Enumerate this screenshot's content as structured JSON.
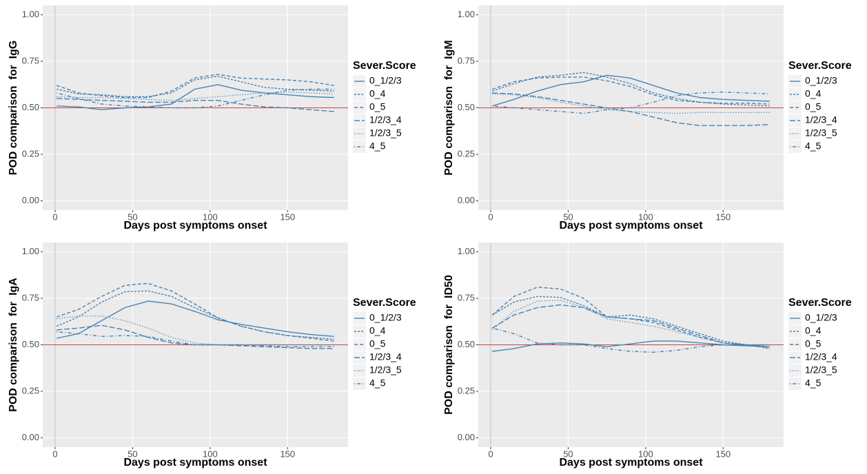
{
  "chart_data": [
    {
      "type": "line",
      "xlabel": "Days post symptoms onset",
      "ylabel": "POD comparison  for  IgG",
      "legend_title": "Sever.Score",
      "legend": "right",
      "grid": true,
      "xlim": [
        -8,
        189
      ],
      "ylim": [
        -0.05,
        1.05
      ],
      "xticks": [
        0,
        50,
        100,
        150
      ],
      "yticks": [
        {
          "value": 0,
          "label": "0.00"
        },
        {
          "value": 0.25,
          "label": "0.25"
        },
        {
          "value": 0.5,
          "label": "0.50"
        },
        {
          "value": 0.75,
          "label": "0.75"
        },
        {
          "value": 1,
          "label": "1.00"
        }
      ],
      "vline": 0,
      "hline": {
        "value": 0.5,
        "color": "#d04040"
      },
      "x": [
        1,
        15,
        30,
        45,
        60,
        75,
        90,
        105,
        120,
        135,
        150,
        165,
        180
      ],
      "series": [
        {
          "name": "0_1/2/3",
          "color": "#4682b4",
          "linetype": "solid",
          "values": [
            0.51,
            0.505,
            0.49,
            0.5,
            0.505,
            0.52,
            0.6,
            0.625,
            0.595,
            0.58,
            0.57,
            0.56,
            0.555
          ]
        },
        {
          "name": "0_4",
          "color": "#4682b4",
          "linetype": "short-dash",
          "values": [
            0.6,
            0.575,
            0.57,
            0.56,
            0.56,
            0.58,
            0.65,
            0.67,
            0.64,
            0.61,
            0.6,
            0.595,
            0.59
          ]
        },
        {
          "name": "0_5",
          "color": "#4682b4",
          "linetype": "dash",
          "values": [
            0.62,
            0.58,
            0.565,
            0.555,
            0.555,
            0.59,
            0.66,
            0.68,
            0.66,
            0.655,
            0.65,
            0.64,
            0.62
          ]
        },
        {
          "name": "1/2/3_4",
          "color": "#4682b4",
          "linetype": "long-dash",
          "values": [
            0.55,
            0.545,
            0.54,
            0.535,
            0.53,
            0.53,
            0.54,
            0.54,
            0.52,
            0.505,
            0.5,
            0.49,
            0.48
          ]
        },
        {
          "name": "1/2/3_5",
          "color": "#4682b4",
          "linetype": "dotted",
          "values": [
            0.56,
            0.555,
            0.555,
            0.55,
            0.545,
            0.54,
            0.55,
            0.56,
            0.57,
            0.58,
            0.585,
            0.58,
            0.575
          ]
        },
        {
          "name": "4_5",
          "color": "#4682b4",
          "linetype": "dot-dash",
          "values": [
            0.58,
            0.55,
            0.52,
            0.51,
            0.505,
            0.5,
            0.5,
            0.51,
            0.54,
            0.57,
            0.595,
            0.6,
            0.6
          ]
        }
      ]
    },
    {
      "type": "line",
      "xlabel": "Days post symptoms onset",
      "ylabel": "POD comparison  for  IgM",
      "legend_title": "Sever.Score",
      "legend": "right",
      "grid": true,
      "xlim": [
        -8,
        189
      ],
      "ylim": [
        -0.05,
        1.05
      ],
      "xticks": [
        0,
        50,
        100,
        150
      ],
      "yticks": [
        {
          "value": 0,
          "label": "0.00"
        },
        {
          "value": 0.25,
          "label": "0.25"
        },
        {
          "value": 0.5,
          "label": "0.50"
        },
        {
          "value": 0.75,
          "label": "0.75"
        },
        {
          "value": 1,
          "label": "1.00"
        }
      ],
      "vline": 0,
      "hline": {
        "value": 0.5,
        "color": "#d04040"
      },
      "x": [
        1,
        15,
        30,
        45,
        60,
        75,
        90,
        105,
        120,
        135,
        150,
        165,
        180
      ],
      "series": [
        {
          "name": "0_1/2/3",
          "color": "#4682b4",
          "linetype": "solid",
          "values": [
            0.51,
            0.545,
            0.59,
            0.625,
            0.64,
            0.675,
            0.66,
            0.62,
            0.58,
            0.555,
            0.545,
            0.54,
            0.535
          ]
        },
        {
          "name": "0_4",
          "color": "#4682b4",
          "linetype": "short-dash",
          "values": [
            0.59,
            0.63,
            0.665,
            0.675,
            0.69,
            0.665,
            0.63,
            0.58,
            0.55,
            0.53,
            0.52,
            0.515,
            0.51
          ]
        },
        {
          "name": "0_5",
          "color": "#4682b4",
          "linetype": "dash",
          "values": [
            0.6,
            0.64,
            0.66,
            0.665,
            0.665,
            0.645,
            0.615,
            0.57,
            0.54,
            0.53,
            0.525,
            0.525,
            0.52
          ]
        },
        {
          "name": "1/2/3_4",
          "color": "#4682b4",
          "linetype": "long-dash",
          "values": [
            0.58,
            0.575,
            0.56,
            0.54,
            0.52,
            0.5,
            0.48,
            0.45,
            0.42,
            0.405,
            0.405,
            0.405,
            0.41
          ]
        },
        {
          "name": "1/2/3_5",
          "color": "#4682b4",
          "linetype": "dotted",
          "values": [
            0.575,
            0.57,
            0.555,
            0.53,
            0.51,
            0.49,
            0.48,
            0.475,
            0.47,
            0.475,
            0.475,
            0.475,
            0.475
          ]
        },
        {
          "name": "4_5",
          "color": "#4682b4",
          "linetype": "dot-dash",
          "values": [
            0.51,
            0.5,
            0.49,
            0.48,
            0.47,
            0.49,
            0.5,
            0.53,
            0.565,
            0.58,
            0.585,
            0.58,
            0.575
          ]
        }
      ]
    },
    {
      "type": "line",
      "xlabel": "Days post symptoms onset",
      "ylabel": "POD comparison  for  IgA",
      "legend_title": "Sever.Score",
      "legend": "right",
      "grid": true,
      "xlim": [
        -8,
        189
      ],
      "ylim": [
        -0.05,
        1.05
      ],
      "xticks": [
        0,
        50,
        100,
        150
      ],
      "yticks": [
        {
          "value": 0,
          "label": "0.00"
        },
        {
          "value": 0.25,
          "label": "0.25"
        },
        {
          "value": 0.5,
          "label": "0.50"
        },
        {
          "value": 0.75,
          "label": "0.75"
        },
        {
          "value": 1,
          "label": "1.00"
        }
      ],
      "vline": 0,
      "hline": {
        "value": 0.5,
        "color": "#d04040"
      },
      "x": [
        1,
        15,
        30,
        45,
        60,
        75,
        90,
        105,
        120,
        135,
        150,
        165,
        180
      ],
      "series": [
        {
          "name": "0_1/2/3",
          "color": "#4682b4",
          "linetype": "solid",
          "values": [
            0.535,
            0.56,
            0.63,
            0.7,
            0.735,
            0.72,
            0.68,
            0.635,
            0.61,
            0.59,
            0.57,
            0.555,
            0.545
          ]
        },
        {
          "name": "0_4",
          "color": "#4682b4",
          "linetype": "short-dash",
          "values": [
            0.6,
            0.65,
            0.73,
            0.785,
            0.79,
            0.76,
            0.7,
            0.645,
            0.6,
            0.57,
            0.55,
            0.54,
            0.53
          ]
        },
        {
          "name": "0_5",
          "color": "#4682b4",
          "linetype": "dash",
          "values": [
            0.65,
            0.69,
            0.76,
            0.82,
            0.83,
            0.79,
            0.72,
            0.645,
            0.6,
            0.57,
            0.55,
            0.535,
            0.52
          ]
        },
        {
          "name": "1/2/3_4",
          "color": "#4682b4",
          "linetype": "long-dash",
          "values": [
            0.58,
            0.59,
            0.605,
            0.58,
            0.54,
            0.51,
            0.5,
            0.5,
            0.495,
            0.49,
            0.485,
            0.48,
            0.48
          ]
        },
        {
          "name": "1/2/3_5",
          "color": "#4682b4",
          "linetype": "dotted",
          "values": [
            0.64,
            0.655,
            0.655,
            0.63,
            0.59,
            0.54,
            0.51,
            0.5,
            0.5,
            0.5,
            0.5,
            0.5,
            0.5
          ]
        },
        {
          "name": "4_5",
          "color": "#4682b4",
          "linetype": "dot-dash",
          "values": [
            0.57,
            0.56,
            0.545,
            0.55,
            0.545,
            0.52,
            0.5,
            0.5,
            0.5,
            0.495,
            0.49,
            0.49,
            0.49
          ]
        }
      ]
    },
    {
      "type": "line",
      "xlabel": "Days post symptoms onset",
      "ylabel": "POD comparison  for  ID50",
      "legend_title": "Sever.Score",
      "legend": "right",
      "grid": true,
      "xlim": [
        -8,
        189
      ],
      "ylim": [
        -0.05,
        1.05
      ],
      "xticks": [
        0,
        50,
        100,
        150
      ],
      "yticks": [
        {
          "value": 0,
          "label": "0.00"
        },
        {
          "value": 0.25,
          "label": "0.25"
        },
        {
          "value": 0.5,
          "label": "0.50"
        },
        {
          "value": 0.75,
          "label": "0.75"
        },
        {
          "value": 1,
          "label": "1.00"
        }
      ],
      "vline": 0,
      "hline": {
        "value": 0.5,
        "color": "#d04040"
      },
      "x": [
        1,
        15,
        30,
        45,
        60,
        75,
        90,
        105,
        120,
        135,
        150,
        165,
        180
      ],
      "series": [
        {
          "name": "0_1/2/3",
          "color": "#4682b4",
          "linetype": "solid",
          "values": [
            0.465,
            0.48,
            0.505,
            0.51,
            0.505,
            0.49,
            0.505,
            0.52,
            0.52,
            0.51,
            0.5,
            0.495,
            0.49
          ]
        },
        {
          "name": "0_4",
          "color": "#4682b4",
          "linetype": "short-dash",
          "values": [
            0.66,
            0.73,
            0.76,
            0.755,
            0.71,
            0.65,
            0.66,
            0.64,
            0.6,
            0.56,
            0.52,
            0.5,
            0.48
          ]
        },
        {
          "name": "0_5",
          "color": "#4682b4",
          "linetype": "dash",
          "values": [
            0.66,
            0.76,
            0.81,
            0.8,
            0.75,
            0.65,
            0.64,
            0.62,
            0.58,
            0.54,
            0.51,
            0.5,
            0.49
          ]
        },
        {
          "name": "1/2/3_4",
          "color": "#4682b4",
          "linetype": "long-dash",
          "values": [
            0.59,
            0.66,
            0.7,
            0.715,
            0.7,
            0.65,
            0.64,
            0.63,
            0.59,
            0.55,
            0.51,
            0.5,
            0.49
          ]
        },
        {
          "name": "1/2/3_5",
          "color": "#4682b4",
          "linetype": "dotted",
          "values": [
            0.58,
            0.68,
            0.735,
            0.74,
            0.7,
            0.64,
            0.62,
            0.6,
            0.57,
            0.54,
            0.51,
            0.5,
            0.48
          ]
        },
        {
          "name": "4_5",
          "color": "#4682b4",
          "linetype": "dot-dash",
          "values": [
            0.59,
            0.56,
            0.51,
            0.5,
            0.5,
            0.48,
            0.465,
            0.46,
            0.47,
            0.49,
            0.5,
            0.5,
            0.5
          ]
        }
      ]
    }
  ]
}
